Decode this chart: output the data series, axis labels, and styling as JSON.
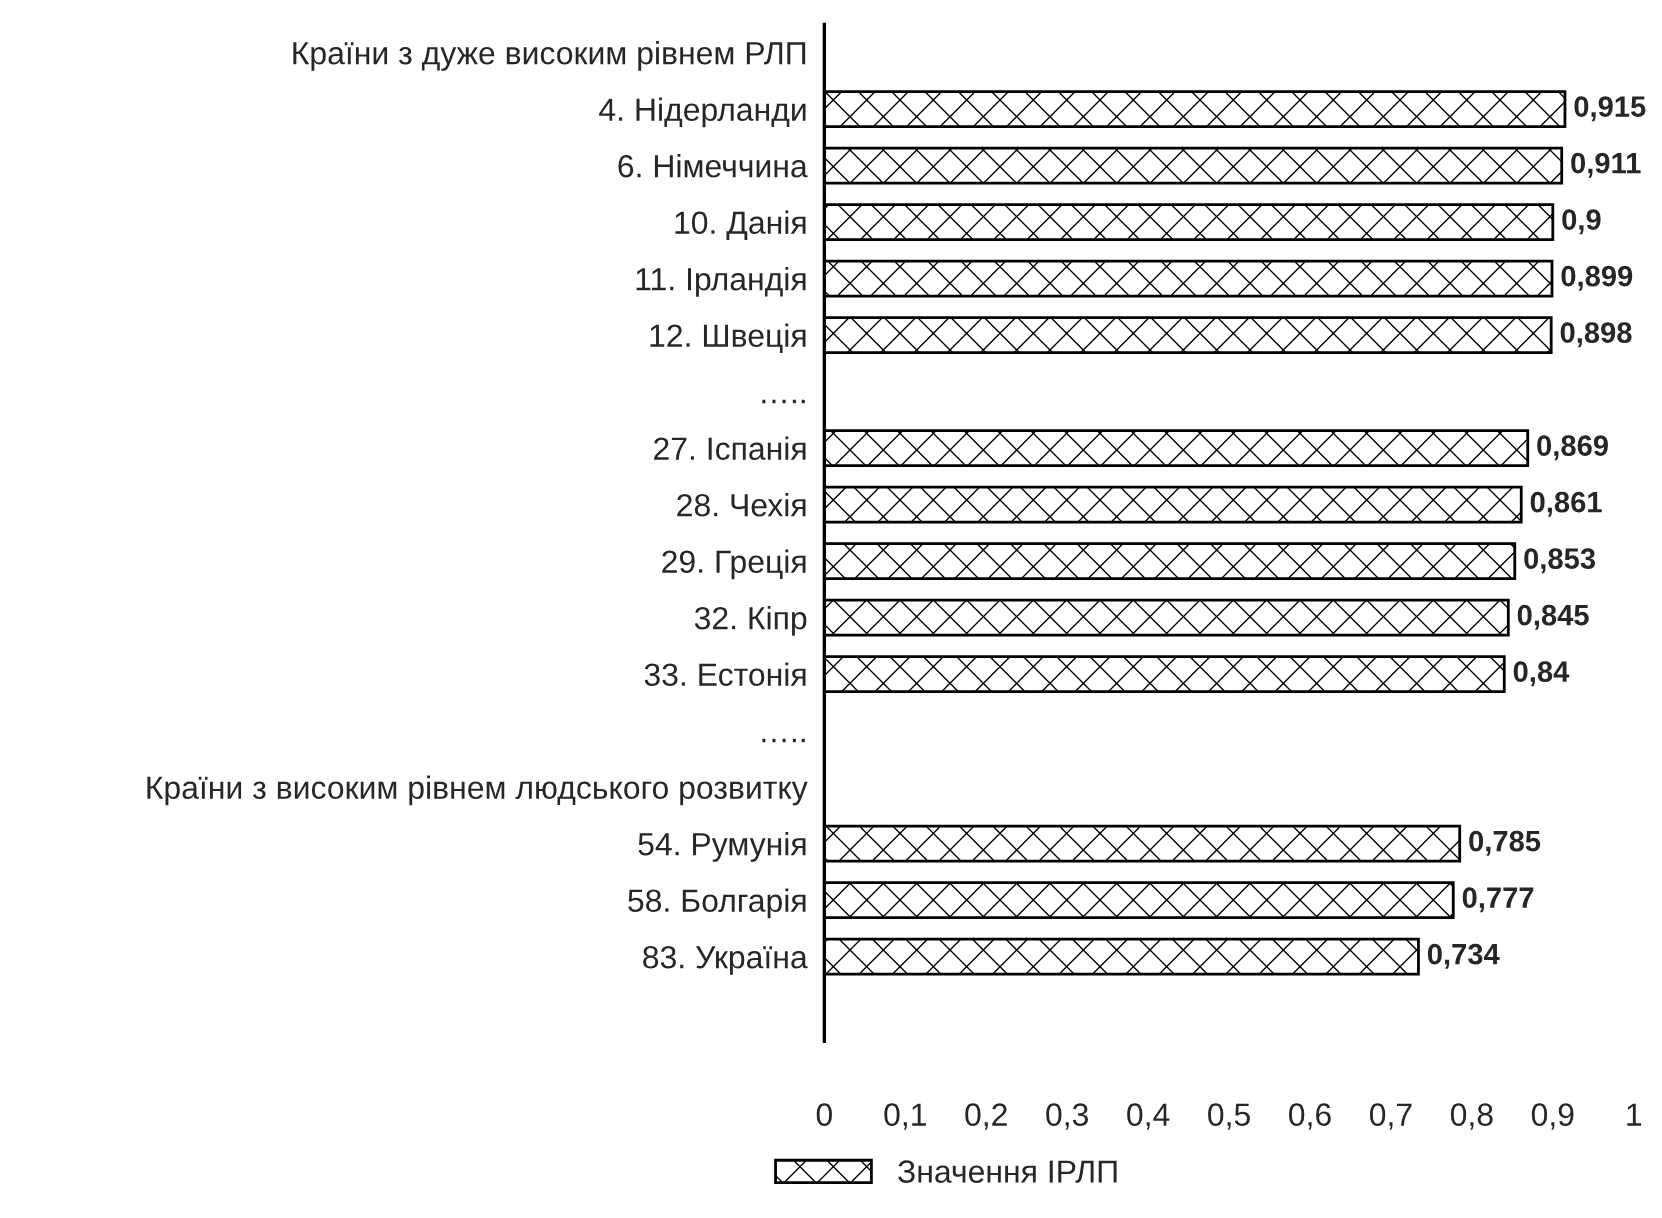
{
  "chart_data": {
    "type": "bar",
    "orientation": "horizontal",
    "categories": [
      "Країни з дуже високим рівнем РЛП",
      "4. Нідерланди",
      "6. Німеччина",
      "10. Данія",
      "11. Ірландія",
      "12. Швеція",
      "…..",
      "27. Іспанія",
      "28. Чехія",
      "29. Греція",
      "32. Кіпр",
      "33. Естонія",
      "…..",
      "Країни з високим рівнем людського розвитку",
      "54. Румунія",
      "58. Болгарія",
      "83. Україна",
      null
    ],
    "series": [
      {
        "name": "Значення ІРЛП",
        "color": "#000000",
        "values": [
          null,
          0.915,
          0.911,
          0.9,
          0.899,
          0.898,
          null,
          0.869,
          0.861,
          0.853,
          0.845,
          0.84,
          null,
          null,
          0.785,
          0.777,
          0.734,
          null
        ],
        "value_labels": [
          null,
          "0,915",
          "0,911",
          "0,9",
          "0,899",
          "0,898",
          null,
          "0,869",
          "0,861",
          "0,853",
          "0,845",
          "0,84",
          null,
          null,
          "0,785",
          "0,777",
          "0,734",
          null
        ]
      }
    ],
    "xlim": [
      0,
      1
    ],
    "xticks": [
      0,
      {
        "value": 0.1,
        "label": "0,1"
      },
      {
        "value": 0.2,
        "label": "0,2"
      },
      {
        "value": 0.3,
        "label": "0,3"
      },
      {
        "value": 0.4,
        "label": "0,4"
      },
      {
        "value": 0.5,
        "label": "0,5"
      },
      {
        "value": 0.6,
        "label": "0,6"
      },
      {
        "value": 0.7,
        "label": "0,7"
      },
      {
        "value": 0.8,
        "label": "0,8"
      },
      {
        "value": 0.9,
        "label": "0,9"
      },
      1
    ],
    "grid": false,
    "legend": "bottom"
  }
}
